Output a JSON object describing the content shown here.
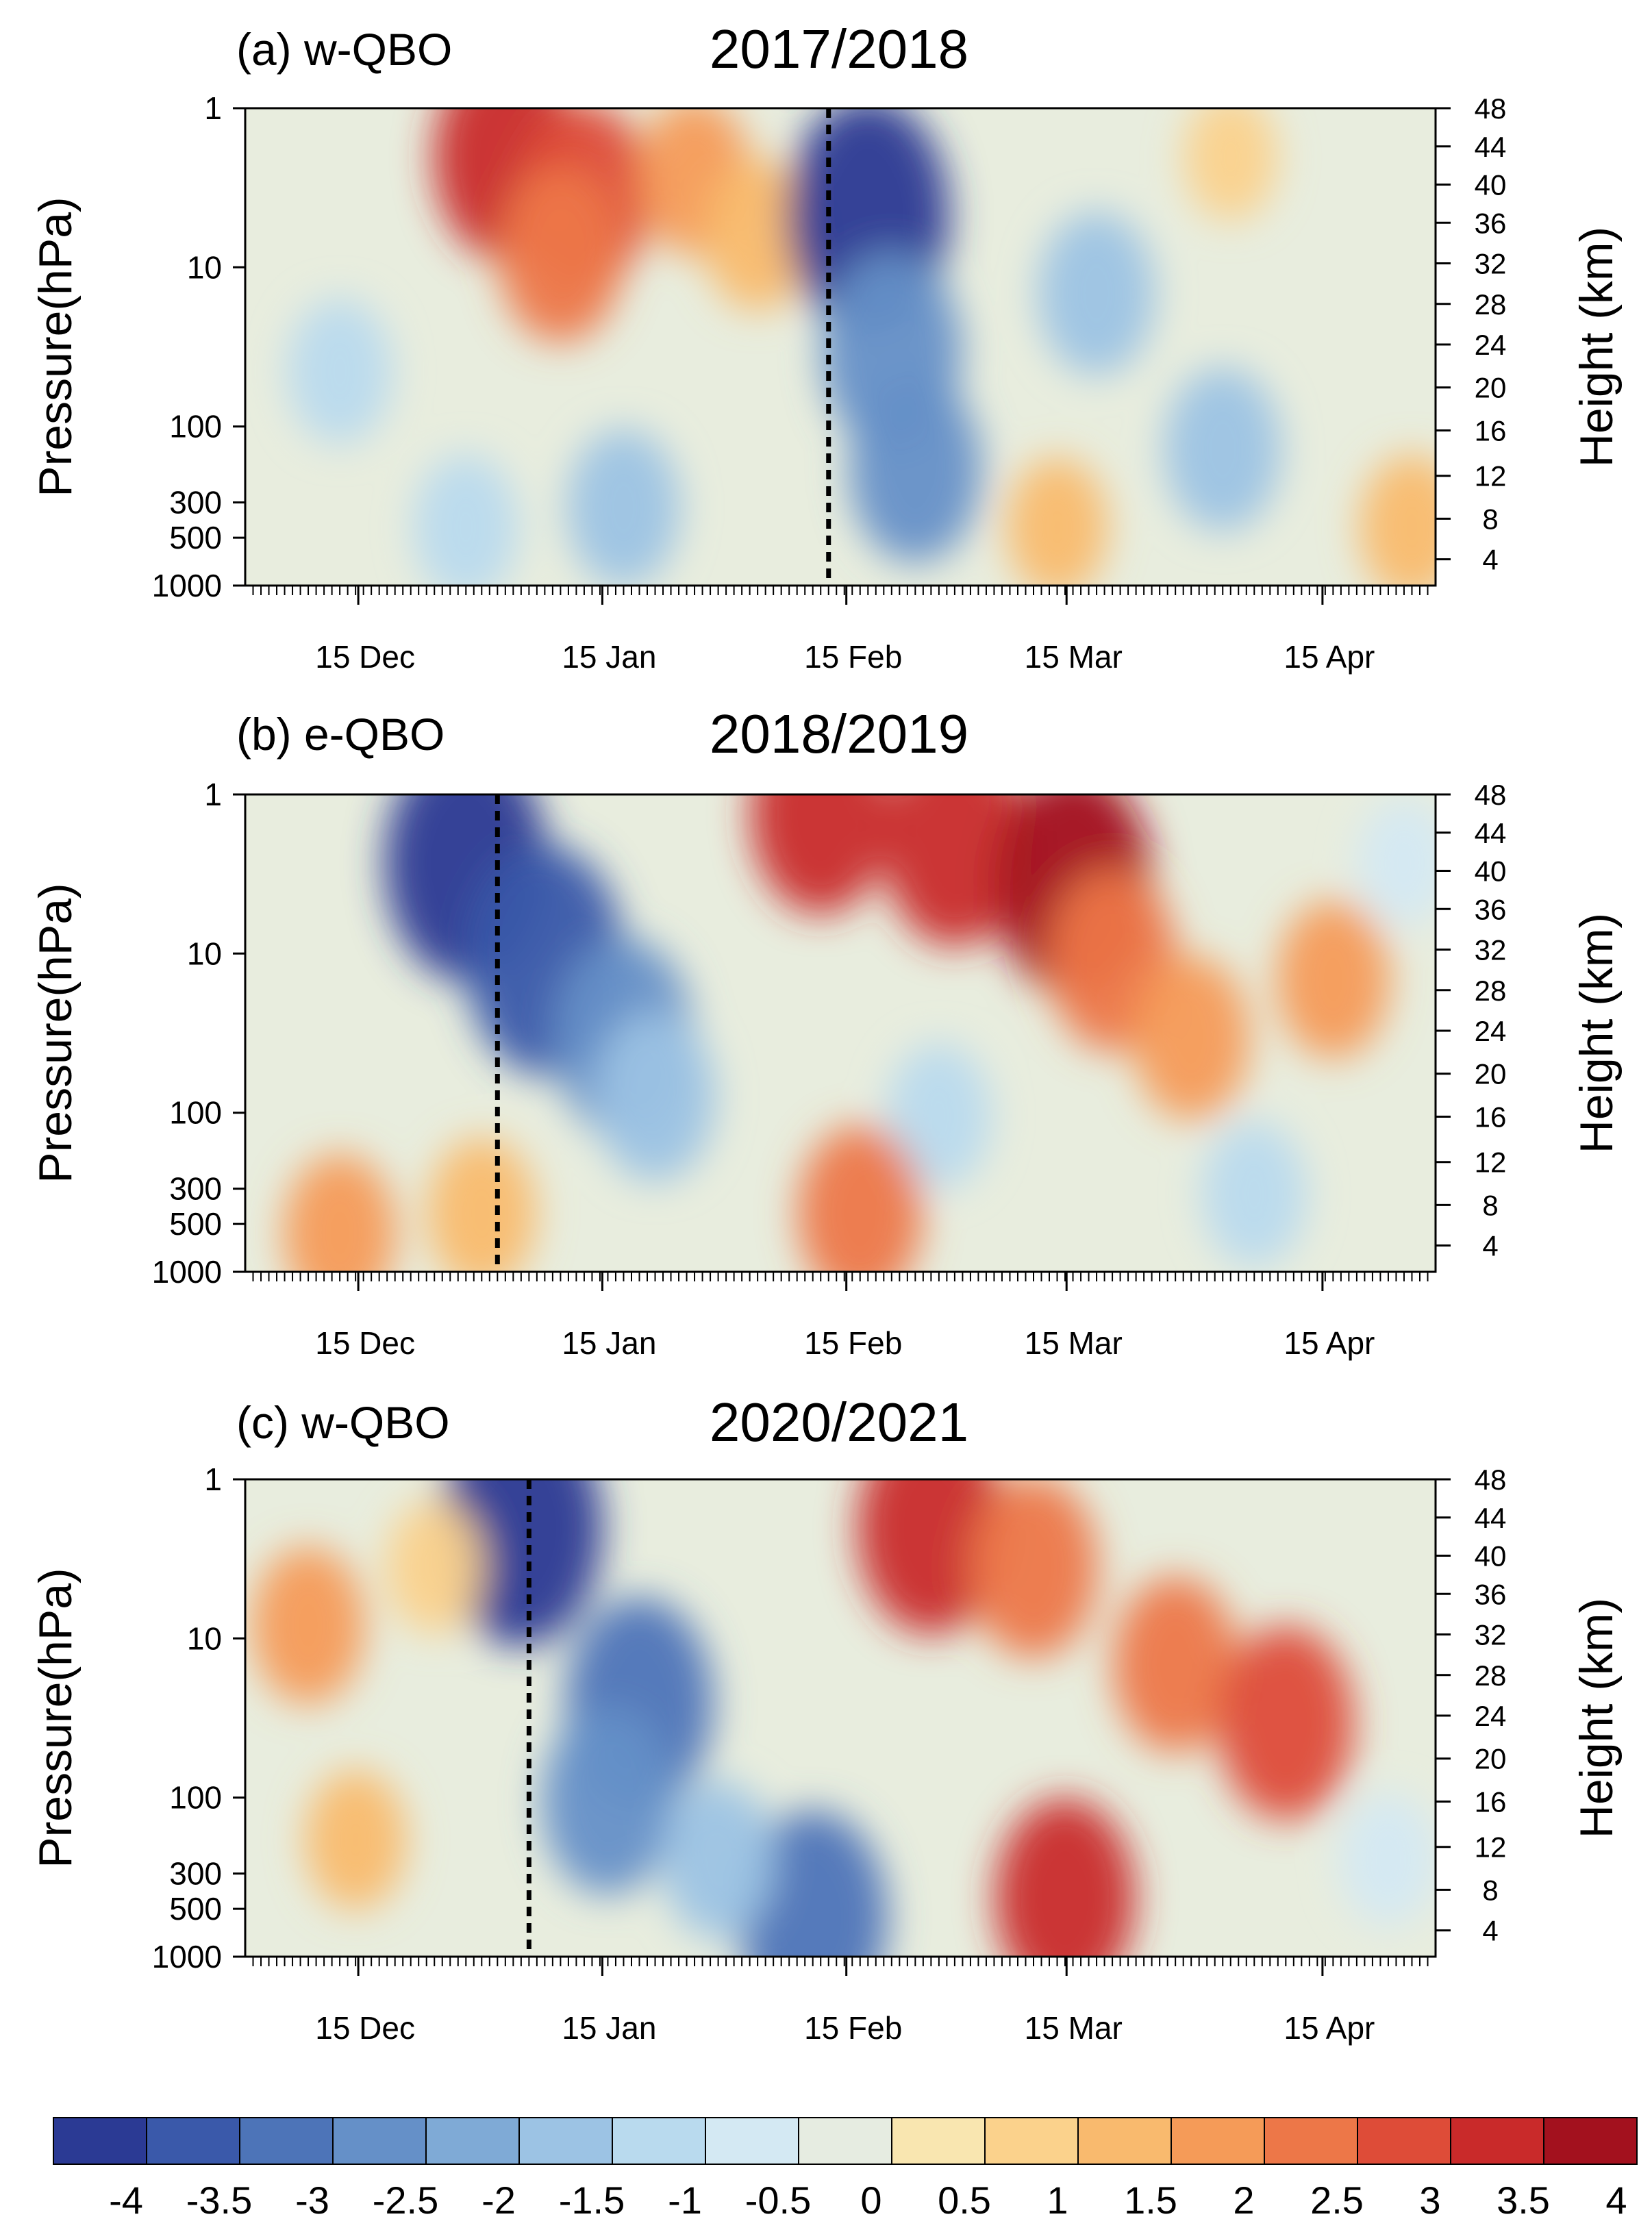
{
  "chart_data": [
    {
      "type": "heatmap",
      "panel_label": "(a) w-QBO",
      "title": "2017/2018",
      "ylabel": "Pressure(hPa)",
      "y2label": "Height (km)",
      "ytick_labels": [
        "1",
        "10",
        "100",
        "300",
        "500",
        "1000"
      ],
      "y2tick_labels": [
        "48",
        "44",
        "40",
        "36",
        "32",
        "28",
        "24",
        "20",
        "16",
        "12",
        "8",
        "4"
      ],
      "xtick_labels": [
        "15 Dec",
        "15 Jan",
        "15 Feb",
        "15 Mar",
        "15 Apr"
      ],
      "x_range_days": [
        0,
        151
      ],
      "event_line_day": 74,
      "field_centers": [
        {
          "day": 33,
          "height_km": 44,
          "value": 3.2
        },
        {
          "day": 43,
          "height_km": 40,
          "value": 2.6
        },
        {
          "day": 40,
          "height_km": 34,
          "value": 2.2
        },
        {
          "day": 57,
          "height_km": 42,
          "value": 1.6
        },
        {
          "day": 65,
          "height_km": 36,
          "value": 1.4
        },
        {
          "day": 79,
          "height_km": 38,
          "value": -4.2
        },
        {
          "day": 82,
          "height_km": 24,
          "value": -3.0
        },
        {
          "day": 85,
          "height_km": 12,
          "value": -2.6
        },
        {
          "day": 108,
          "height_km": 30,
          "value": -1.8
        },
        {
          "day": 124,
          "height_km": 14,
          "value": -1.8
        },
        {
          "day": 12,
          "height_km": 22,
          "value": -1.2
        },
        {
          "day": 48,
          "height_km": 8,
          "value": -1.6
        },
        {
          "day": 28,
          "height_km": 6,
          "value": -1.2
        },
        {
          "day": 103,
          "height_km": 6,
          "value": 1.0
        },
        {
          "day": 148,
          "height_km": 6,
          "value": 1.2
        },
        {
          "day": 125,
          "height_km": 44,
          "value": 0.6
        }
      ]
    },
    {
      "type": "heatmap",
      "panel_label": "(b) e-QBO",
      "title": "2018/2019",
      "ylabel": "Pressure(hPa)",
      "y2label": "Height (km)",
      "ytick_labels": [
        "1",
        "10",
        "100",
        "300",
        "500",
        "1000"
      ],
      "y2tick_labels": [
        "48",
        "44",
        "40",
        "36",
        "32",
        "28",
        "24",
        "20",
        "16",
        "12",
        "8",
        "4"
      ],
      "xtick_labels": [
        "15 Dec",
        "15 Jan",
        "15 Feb",
        "15 Mar",
        "15 Apr"
      ],
      "x_range_days": [
        0,
        151
      ],
      "event_line_day": 32,
      "field_centers": [
        {
          "day": 28,
          "height_km": 42,
          "value": -4.2
        },
        {
          "day": 38,
          "height_km": 32,
          "value": -4.0
        },
        {
          "day": 48,
          "height_km": 24,
          "value": -3.0
        },
        {
          "day": 52,
          "height_km": 18,
          "value": -2.0
        },
        {
          "day": 90,
          "height_km": 44,
          "value": 3.2
        },
        {
          "day": 73,
          "height_km": 47,
          "value": 3.0
        },
        {
          "day": 105,
          "height_km": 40,
          "value": 3.9
        },
        {
          "day": 110,
          "height_km": 32,
          "value": 2.4
        },
        {
          "day": 120,
          "height_km": 24,
          "value": 1.8
        },
        {
          "day": 138,
          "height_km": 30,
          "value": 1.6
        },
        {
          "day": 88,
          "height_km": 16,
          "value": -1.2
        },
        {
          "day": 78,
          "height_km": 6,
          "value": 2.2
        },
        {
          "day": 12,
          "height_km": 4,
          "value": 1.6
        },
        {
          "day": 30,
          "height_km": 6,
          "value": 1.4
        },
        {
          "day": 128,
          "height_km": 8,
          "value": -1.2
        },
        {
          "day": 147,
          "height_km": 42,
          "value": -0.6
        }
      ]
    },
    {
      "type": "heatmap",
      "panel_label": "(c) w-QBO",
      "title": "2020/2021",
      "ylabel": "Pressure(hPa)",
      "y2label": "Height (km)",
      "ytick_labels": [
        "1",
        "10",
        "100",
        "300",
        "500",
        "1000"
      ],
      "y2tick_labels": [
        "48",
        "44",
        "40",
        "36",
        "32",
        "28",
        "24",
        "20",
        "16",
        "12",
        "8",
        "4"
      ],
      "xtick_labels": [
        "15 Dec",
        "15 Jan",
        "15 Feb",
        "15 Mar",
        "15 Apr"
      ],
      "x_range_days": [
        0,
        151
      ],
      "event_line_day": 36,
      "field_centers": [
        {
          "day": 35,
          "height_km": 44,
          "value": -4.2
        },
        {
          "day": 50,
          "height_km": 26,
          "value": -3.4
        },
        {
          "day": 46,
          "height_km": 16,
          "value": -2.6
        },
        {
          "day": 72,
          "height_km": 4,
          "value": -3.5
        },
        {
          "day": 60,
          "height_km": 10,
          "value": -1.6
        },
        {
          "day": 87,
          "height_km": 44,
          "value": 3.4
        },
        {
          "day": 100,
          "height_km": 40,
          "value": 2.4
        },
        {
          "day": 118,
          "height_km": 30,
          "value": 2.2
        },
        {
          "day": 132,
          "height_km": 24,
          "value": 2.8
        },
        {
          "day": 104,
          "height_km": 6,
          "value": 3.0
        },
        {
          "day": 8,
          "height_km": 34,
          "value": 1.6
        },
        {
          "day": 14,
          "height_km": 12,
          "value": 1.0
        },
        {
          "day": 24,
          "height_km": 40,
          "value": 0.8
        },
        {
          "day": 145,
          "height_km": 10,
          "value": -0.8
        }
      ]
    }
  ],
  "colorbar": {
    "tick_labels": [
      "-4",
      "-3.5",
      "-3",
      "-2.5",
      "-2",
      "-1.5",
      "-1",
      "-0.5",
      "0",
      "0.5",
      "1",
      "1.5",
      "2",
      "2.5",
      "3",
      "3.5",
      "4"
    ],
    "colors": [
      "#2b3a94",
      "#3a59aa",
      "#4d74b8",
      "#6590c8",
      "#7faad6",
      "#9cc3e4",
      "#b9daee",
      "#d4e9f3",
      "#e6ece1",
      "#f9e6b0",
      "#fbd28c",
      "#f9ba6e",
      "#f59b58",
      "#ed7748",
      "#de4c38",
      "#c92a2a",
      "#a3111e"
    ]
  }
}
